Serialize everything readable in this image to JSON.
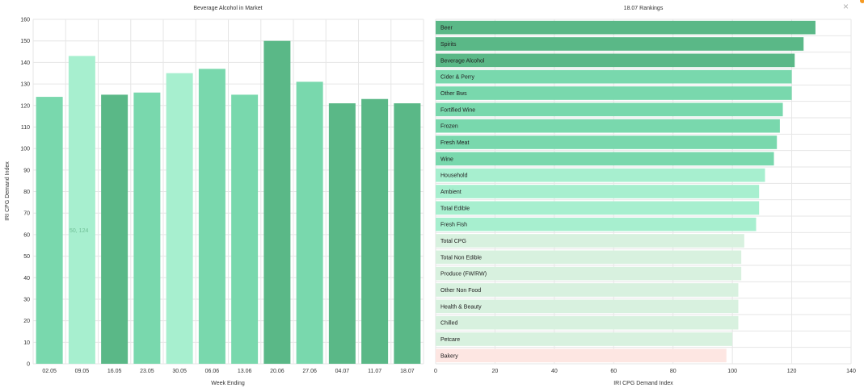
{
  "ui": {
    "close_glyph": "×",
    "hover_value_label": "50, 124"
  },
  "colors": {
    "dark_green": "#5ab887",
    "mid_green": "#79d8ad",
    "light_green": "#a7efcf",
    "pale_green": "#d8f1df",
    "pink": "#fde6e2",
    "accent_orange": "#f59a23"
  },
  "chart_data": [
    {
      "type": "bar",
      "orientation": "vertical",
      "title": "Beverage Alcohol in Market",
      "xlabel": "Week Ending",
      "ylabel": "IRI CPG Demand Index",
      "ylim": [
        0,
        160
      ],
      "yticks": [
        0,
        10,
        20,
        30,
        40,
        50,
        60,
        70,
        80,
        90,
        100,
        110,
        120,
        130,
        140,
        150,
        160
      ],
      "grid": true,
      "categories": [
        "02.05",
        "09.05",
        "16.05",
        "23.05",
        "30.05",
        "06.06",
        "13.06",
        "20.06",
        "27.06",
        "04.07",
        "11.07",
        "18.07"
      ],
      "values": [
        124,
        143,
        125,
        126,
        135,
        137,
        125,
        150,
        131,
        121,
        123,
        121
      ],
      "bar_colors": [
        "#79d8ad",
        "#a7efcf",
        "#5ab887",
        "#79d8ad",
        "#a7efcf",
        "#79d8ad",
        "#79d8ad",
        "#5ab887",
        "#79d8ad",
        "#5ab887",
        "#5ab887",
        "#5ab887"
      ]
    },
    {
      "type": "bar",
      "orientation": "horizontal",
      "title": "18.07 Rankings",
      "xlabel": "IRI CPG Demand Index",
      "ylabel": "",
      "xlim": [
        0,
        140
      ],
      "xticks": [
        0,
        20,
        40,
        60,
        80,
        100,
        120,
        140
      ],
      "grid": true,
      "categories": [
        "Beer",
        "Spirits",
        "Beverage Alcohol",
        "Cider & Perry",
        "Other Bws",
        "Fortified Wine",
        "Frozen",
        "Fresh Meat",
        "Wine",
        "Household",
        "Ambient",
        "Total Edible",
        "Fresh Fish",
        "Total CPG",
        "Total Non Edible",
        "Produce (FW/RW)",
        "Other Non Food",
        "Health & Beauty",
        "Chilled",
        "Petcare",
        "Bakery"
      ],
      "values": [
        128,
        124,
        121,
        120,
        120,
        117,
        116,
        115,
        114,
        111,
        109,
        109,
        108,
        104,
        103,
        103,
        102,
        102,
        102,
        100,
        98
      ],
      "bar_colors": [
        "#5ab887",
        "#5ab887",
        "#5ab887",
        "#79d8ad",
        "#79d8ad",
        "#79d8ad",
        "#79d8ad",
        "#79d8ad",
        "#79d8ad",
        "#a7efcf",
        "#a7efcf",
        "#a7efcf",
        "#a7efcf",
        "#d8f1df",
        "#d8f1df",
        "#d8f1df",
        "#d8f1df",
        "#d8f1df",
        "#d8f1df",
        "#d8f1df",
        "#fde6e2"
      ]
    }
  ]
}
